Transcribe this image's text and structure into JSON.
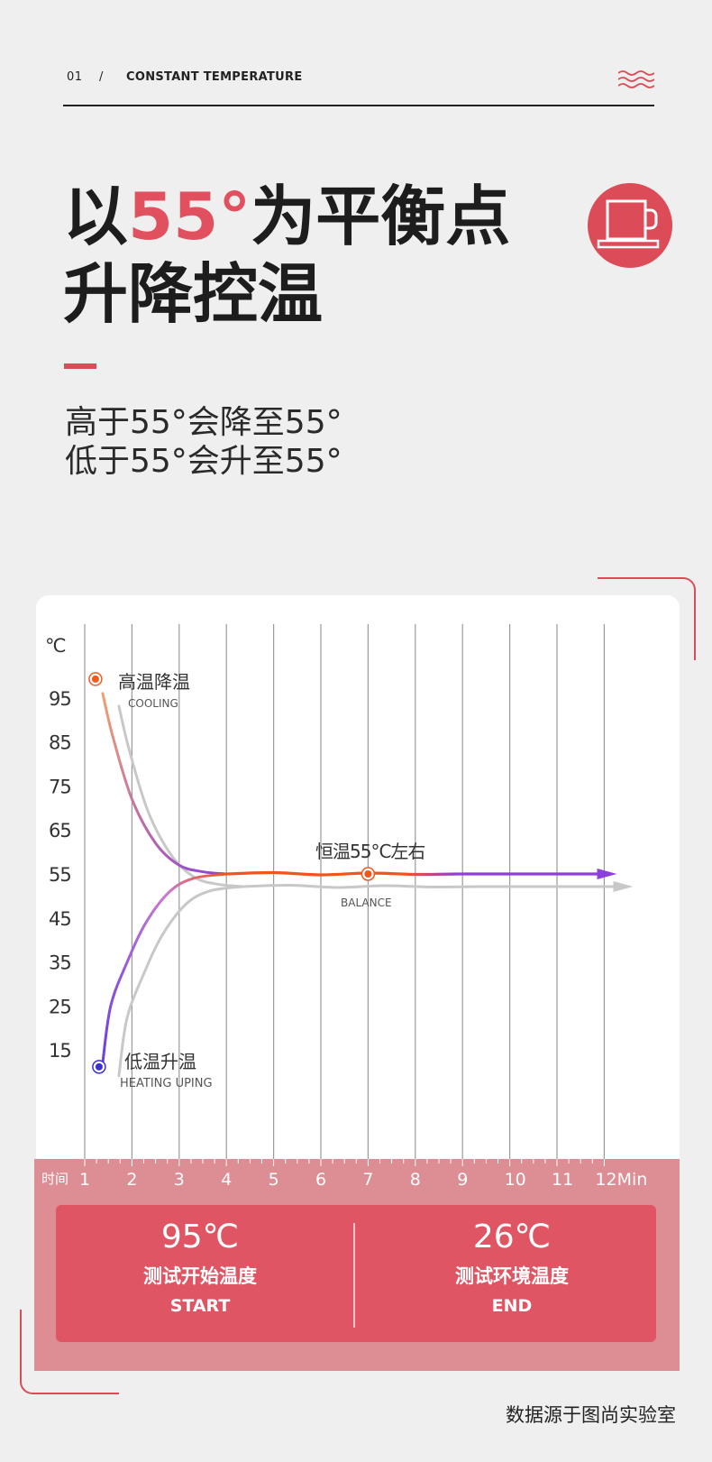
{
  "header": {
    "index": "01",
    "separator": "/",
    "title": "CONSTANT TEMPERATURE",
    "wave_color": "#dc4c58"
  },
  "headline": {
    "line1_prefix": "以",
    "line1_accent": "55°",
    "line1_suffix": "为平衡点",
    "line2": "升降控温"
  },
  "subtitle": {
    "line1": "高于55°会降至55°",
    "line2": "低于55°会升至55°"
  },
  "colors": {
    "accent": "#e0505f",
    "cooling_dot": "#ef5b1f",
    "heating_dot": "#3b2fd6",
    "line_orange": "#f2551c",
    "line_purple": "#8d3fd9",
    "shadow_gray": "#c8c8c8"
  },
  "chart_data": {
    "type": "line",
    "ylabel": "℃",
    "xlabel_prefix": "时间",
    "x_ticks": [
      1,
      2,
      3,
      4,
      5,
      6,
      7,
      8,
      9,
      10,
      11,
      12
    ],
    "x_tick_labels": [
      "1",
      "2",
      "3",
      "4",
      "5",
      "6",
      "7",
      "8",
      "9",
      "10",
      "11",
      "12Min"
    ],
    "y_ticks": [
      95,
      85,
      75,
      65,
      55,
      45,
      35,
      25,
      15
    ],
    "y_tick_labels": [
      "95",
      "85",
      "75",
      "65",
      "55",
      "45",
      "35",
      "25",
      "15"
    ],
    "series": [
      {
        "key": "cooling",
        "points": [
          [
            1.38,
            96
          ],
          [
            1.6,
            86
          ],
          [
            2.0,
            72
          ],
          [
            2.5,
            62
          ],
          [
            3.0,
            57
          ],
          [
            3.5,
            55.5
          ],
          [
            4.0,
            55
          ]
        ]
      },
      {
        "key": "heating",
        "points": [
          [
            1.38,
            12
          ],
          [
            1.55,
            25
          ],
          [
            1.9,
            35
          ],
          [
            2.3,
            44
          ],
          [
            2.8,
            51
          ],
          [
            3.3,
            54
          ],
          [
            4.0,
            55
          ]
        ]
      },
      {
        "key": "balance",
        "points": [
          [
            4.0,
            55
          ],
          [
            5.0,
            55.3
          ],
          [
            6.0,
            54.8
          ],
          [
            7.0,
            55.2
          ],
          [
            8.0,
            54.9
          ],
          [
            9.0,
            55
          ],
          [
            10.0,
            55
          ],
          [
            11.0,
            55
          ],
          [
            12.0,
            55
          ]
        ]
      }
    ],
    "annotations": {
      "cooling": {
        "title": "高温降温",
        "sub": "COOLING"
      },
      "heating": {
        "title": "低温升温",
        "sub": "HEATING UPING"
      },
      "balance": {
        "title": "恒温55°C左右",
        "sub": "BALANCE",
        "x": 7.0,
        "y": 55
      }
    },
    "xlim": [
      1,
      12
    ],
    "grid": true
  },
  "stats": {
    "start": {
      "value": "95℃",
      "label": "测试开始温度",
      "eng": "START"
    },
    "end": {
      "value": "26℃",
      "label": "测试环境温度",
      "eng": "END"
    }
  },
  "source": "数据源于图尚实验室"
}
